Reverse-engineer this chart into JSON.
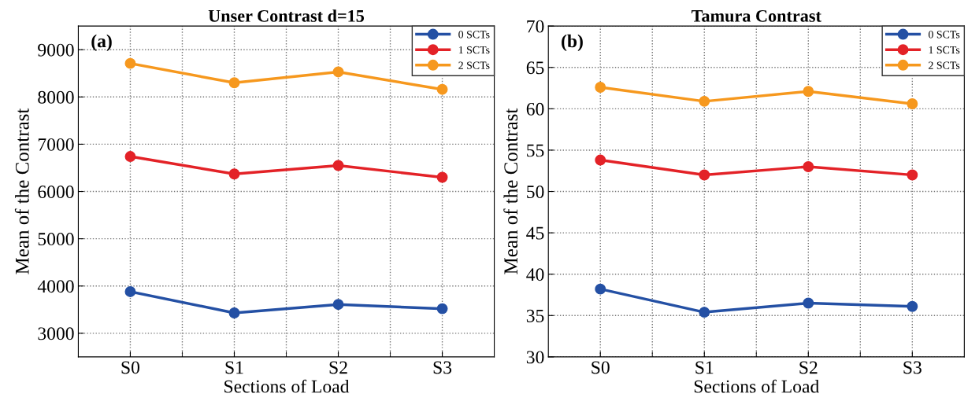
{
  "chart_data": [
    {
      "type": "line",
      "title": "Unser Contrast d=15",
      "xlabel": "Sections of Load",
      "ylabel": "Mean of the Contrast",
      "annotations": [
        "(a)"
      ],
      "categories": [
        "S0",
        "S1",
        "S2",
        "S3"
      ],
      "ylim": [
        2500,
        9500
      ],
      "yticks": [
        3000,
        4000,
        5000,
        6000,
        7000,
        8000,
        9000
      ],
      "grid": true,
      "legend": "top right",
      "marker": "circle",
      "line_style": "solid",
      "series": [
        {
          "name": "0 SCTs",
          "color": "#2450a4",
          "values": [
            3880,
            3430,
            3610,
            3520
          ]
        },
        {
          "name": "1 SCTs",
          "color": "#e32227",
          "values": [
            6740,
            6370,
            6550,
            6300
          ]
        },
        {
          "name": "2 SCTs",
          "color": "#f6981e",
          "values": [
            8710,
            8300,
            8530,
            8160
          ]
        }
      ]
    },
    {
      "type": "line",
      "title": "Tamura Contrast",
      "xlabel": "Sections of Load",
      "ylabel": "Mean of the Contrast",
      "annotations": [
        "(b)"
      ],
      "categories": [
        "S0",
        "S1",
        "S2",
        "S3"
      ],
      "ylim": [
        30,
        70
      ],
      "yticks": [
        30,
        35,
        40,
        45,
        50,
        55,
        60,
        65,
        70
      ],
      "grid": true,
      "legend": "top right",
      "marker": "circle",
      "line_style": "solid",
      "series": [
        {
          "name": "0 SCTs",
          "color": "#2450a4",
          "values": [
            38.2,
            35.4,
            36.5,
            36.1
          ]
        },
        {
          "name": "1 SCTs",
          "color": "#e32227",
          "values": [
            53.8,
            52.0,
            53.0,
            52.0
          ]
        },
        {
          "name": "2 SCTs",
          "color": "#f6981e",
          "values": [
            62.6,
            60.9,
            62.1,
            60.6
          ]
        }
      ]
    }
  ]
}
